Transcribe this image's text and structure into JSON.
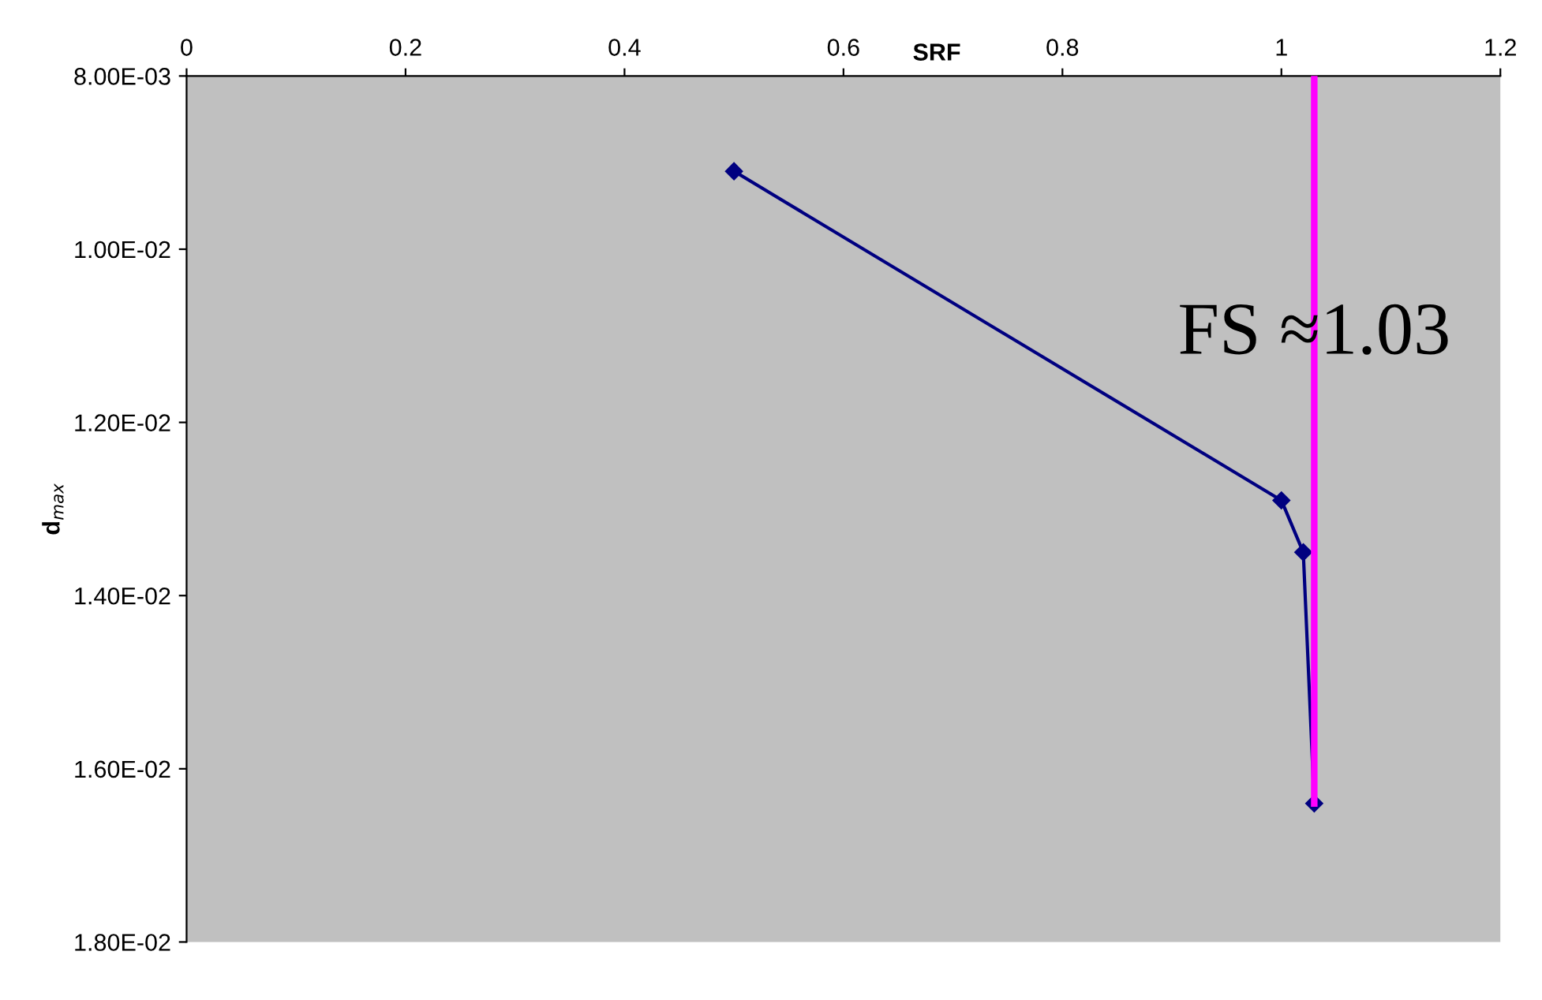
{
  "chart_data": {
    "type": "line",
    "xlabel": "SRF",
    "ylabel": "d$_{max}$",
    "series": [
      {
        "x": [
          0.5,
          1.0,
          1.02,
          1.03
        ],
        "values": [
          0.0091,
          0.0129,
          0.0135,
          0.0164
        ],
        "color": "#000080",
        "marker": "diamond"
      },
      {
        "x": [
          1.03,
          1.03
        ],
        "values": [
          0.008,
          0.0164
        ],
        "color": "#ff00ff",
        "marker": "none"
      }
    ],
    "annotations": [
      {
        "text": "FS ≈1.03",
        "x": 1.03,
        "y": 0.011
      }
    ],
    "xlim": [
      0,
      1.2
    ],
    "xticks": [
      0,
      0.2,
      0.4,
      0.6,
      0.8,
      1,
      1.2
    ],
    "ylim": [
      0.018,
      0.008
    ],
    "yticks": [
      {
        "value": 0.008,
        "label": "8.00E-03"
      },
      {
        "value": 0.01,
        "label": "1.00E-02"
      },
      {
        "value": 0.012,
        "label": "1.20E-02"
      },
      {
        "value": 0.014,
        "label": "1.40E-02"
      },
      {
        "value": 0.016,
        "label": "1.60E-02"
      },
      {
        "value": 0.018,
        "label": "1.80E-02"
      }
    ],
    "grid": false,
    "legend": false
  }
}
